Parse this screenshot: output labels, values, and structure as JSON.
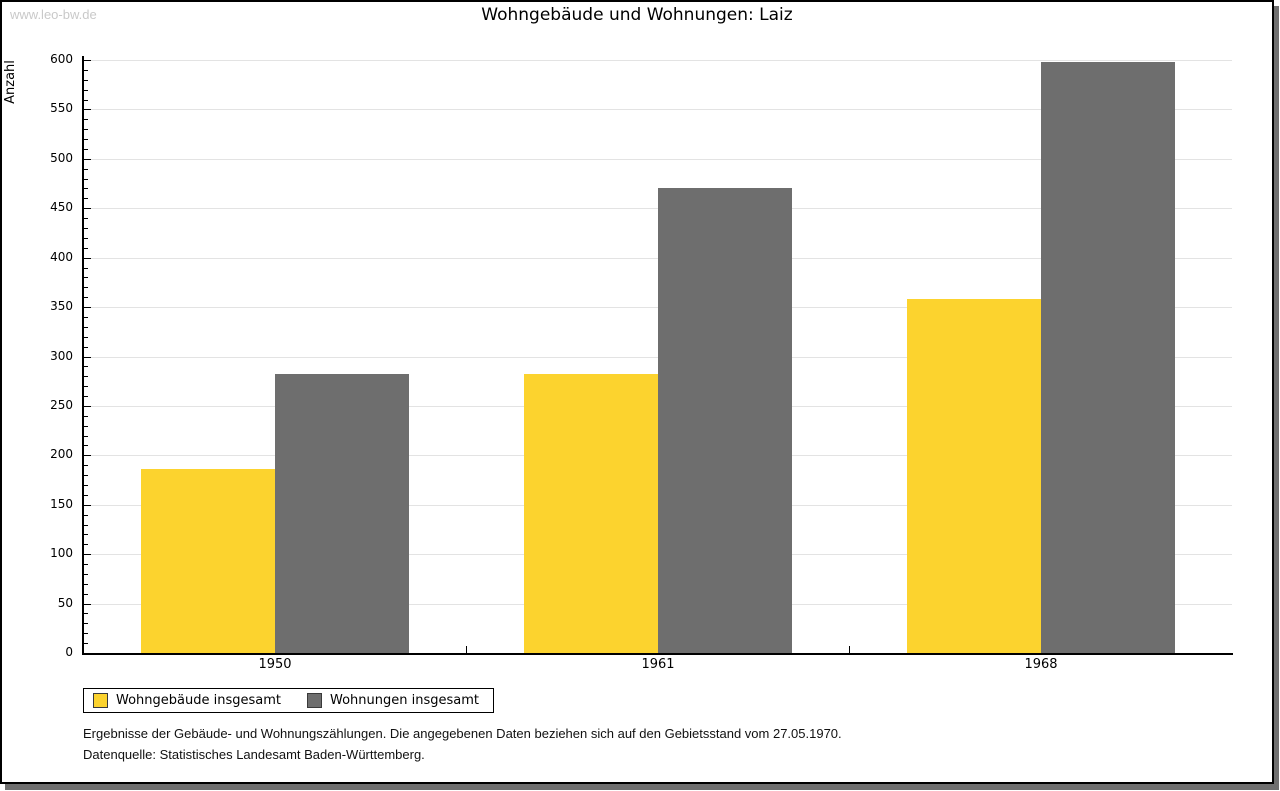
{
  "watermark": "www.leo-bw.de",
  "chart_data": {
    "type": "bar",
    "title": "Wohngebäude und Wohnungen: Laiz",
    "ylabel": "Anzahl",
    "xlabel": "",
    "categories": [
      "1950",
      "1961",
      "1968"
    ],
    "series": [
      {
        "name": "Wohngebäude insgesamt",
        "color": "#fcd32e",
        "values": [
          186,
          282,
          358
        ]
      },
      {
        "name": "Wohnungen insgesamt",
        "color": "#6e6e6e",
        "values": [
          282,
          470,
          598
        ]
      }
    ],
    "ylim": [
      0,
      600
    ],
    "ytick_major_step": 50,
    "ytick_minor_step": 10,
    "grid": "horizontal-major",
    "legend_position": "bottom-left"
  },
  "footnotes": {
    "line1": "Ergebnisse der Gebäude- und Wohnungszählungen. Die angegebenen Daten beziehen sich auf den Gebietsstand vom 27.05.1970.",
    "line2": "Datenquelle: Statistisches Landesamt Baden-Württemberg."
  },
  "colors": {
    "grid": "#e3e3e3",
    "axis": "#000000",
    "watermark": "#c9c9c9",
    "frame_shadow": "#6f6f6f"
  }
}
